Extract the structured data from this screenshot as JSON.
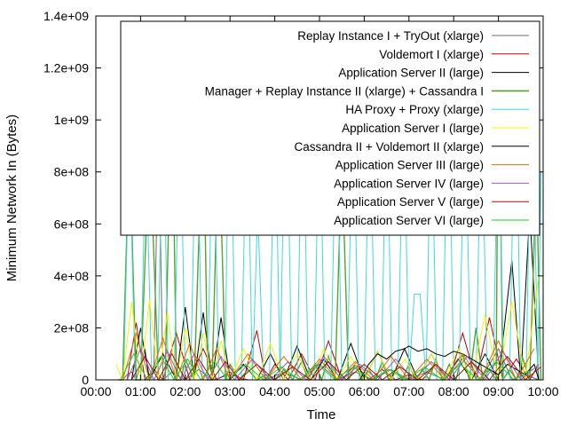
{
  "chart_data": {
    "type": "line",
    "xlabel": "Time",
    "ylabel": "Minimum Network In (Bytes)",
    "xlim": [
      0,
      10
    ],
    "ylim": [
      0,
      1400000000
    ],
    "x_ticks": [
      0,
      1,
      2,
      3,
      4,
      5,
      6,
      7,
      8,
      9,
      10
    ],
    "x_tick_labels": [
      "00:00",
      "01:00",
      "02:00",
      "03:00",
      "04:00",
      "05:00",
      "06:00",
      "07:00",
      "08:00",
      "09:00",
      "10:00"
    ],
    "y_ticks": [
      0,
      200000000,
      400000000,
      600000000,
      800000000,
      1000000000,
      1200000000,
      1400000000
    ],
    "y_tick_labels": [
      "0",
      "2e+08",
      "4e+08",
      "6e+08",
      "8e+08",
      "1e+09",
      "1.2e+09",
      "1.4e+09"
    ],
    "grid": false,
    "legend_position": "top-right",
    "series": [
      {
        "name": "Replay Instance I + TryOut (xlarge)",
        "color": "#6b6b6b",
        "x": [
          0.4,
          0.6,
          0.7,
          0.8,
          0.9,
          1.0,
          1.1,
          1.2,
          1.3,
          1.4,
          1.5,
          1.7,
          2.0,
          2.3,
          2.6,
          3.0,
          3.4,
          3.8,
          4.2,
          4.6,
          5.0,
          5.4,
          5.8,
          6.2,
          6.6,
          7.0,
          7.4,
          7.8,
          8.2,
          8.6,
          9.0,
          9.3,
          9.6,
          9.9
        ],
        "y": [
          0,
          0,
          20000000,
          30000000,
          0,
          60000000,
          120000000,
          0,
          60000000,
          980000000,
          0,
          30000000,
          0,
          40000000,
          0,
          20000000,
          0,
          0,
          30000000,
          0,
          60000000,
          0,
          30000000,
          0,
          40000000,
          0,
          30000000,
          0,
          80000000,
          0,
          120000000,
          0,
          20000000,
          0
        ]
      },
      {
        "name": "Voldemort I (xlarge)",
        "color": "#c00000",
        "x": [
          0.4,
          0.7,
          0.9,
          1.1,
          1.3,
          1.5,
          1.8,
          2.1,
          2.4,
          2.7,
          3.0,
          3.3,
          3.6,
          3.8,
          4.0,
          4.3,
          4.6,
          4.9,
          5.2,
          5.5,
          5.8,
          6.1,
          6.4,
          6.7,
          7.0,
          7.3,
          7.6,
          7.9,
          8.2,
          8.5,
          8.8,
          9.1,
          9.4,
          9.7,
          9.9
        ],
        "y": [
          0,
          0,
          220000000,
          0,
          40000000,
          0,
          180000000,
          0,
          120000000,
          0,
          30000000,
          0,
          190000000,
          0,
          60000000,
          0,
          100000000,
          0,
          150000000,
          0,
          60000000,
          0,
          40000000,
          0,
          20000000,
          0,
          60000000,
          0,
          180000000,
          0,
          240000000,
          0,
          80000000,
          0,
          60000000
        ]
      },
      {
        "name": "Application Server II (large)",
        "color": "#000000",
        "x": [
          0.5,
          0.8,
          1.0,
          1.2,
          1.5,
          1.8,
          2.0,
          2.2,
          2.4,
          2.6,
          2.8,
          3.0,
          3.3,
          3.6,
          3.9,
          4.2,
          4.5,
          4.8,
          5.1,
          5.4,
          5.7,
          6.0,
          6.3,
          6.6,
          6.9,
          7.2,
          7.5,
          7.8,
          8.1,
          8.4,
          8.7,
          9.0,
          9.3,
          9.5,
          9.7,
          9.9
        ],
        "y": [
          0,
          0,
          200000000,
          0,
          100000000,
          0,
          280000000,
          0,
          260000000,
          0,
          240000000,
          0,
          60000000,
          0,
          100000000,
          0,
          130000000,
          0,
          80000000,
          0,
          140000000,
          0,
          110000000,
          0,
          120000000,
          0,
          100000000,
          0,
          80000000,
          0,
          100000000,
          0,
          460000000,
          0,
          650000000,
          0
        ]
      },
      {
        "name": "Manager + Replay Instance II (xlarge) + Cassandra I",
        "color": "#5aa02c",
        "x": [
          0.5,
          0.6,
          0.75,
          0.9,
          1.0,
          1.2,
          1.4,
          1.55,
          1.7,
          1.8,
          1.9,
          2.0,
          2.2,
          2.4,
          2.5,
          2.6,
          2.75,
          2.9,
          3.0,
          3.2,
          3.4,
          3.6,
          3.8,
          4.0,
          4.2,
          4.4,
          4.6,
          4.75,
          4.9,
          5.05,
          5.2,
          5.35,
          5.5,
          5.65,
          5.8,
          5.95,
          6.1,
          6.25,
          6.4,
          6.55,
          6.7,
          6.85,
          7.0,
          7.15,
          7.3,
          7.45,
          7.6,
          7.75,
          7.9,
          8.05,
          8.2,
          8.35,
          8.5,
          8.65,
          8.8,
          8.95,
          9.0,
          9.1,
          9.25,
          9.4,
          9.55,
          9.7,
          9.85,
          9.95
        ],
        "y": [
          0,
          0,
          920000000,
          0,
          0,
          920000000,
          0,
          0,
          1200000000,
          0,
          0,
          80000000,
          0,
          1060000000,
          0,
          0,
          980000000,
          0,
          60000000,
          0,
          40000000,
          0,
          20000000,
          0,
          40000000,
          0,
          70000000,
          0,
          60000000,
          0,
          90000000,
          0,
          850000000,
          0,
          60000000,
          0,
          40000000,
          0,
          70000000,
          0,
          40000000,
          0,
          60000000,
          0,
          40000000,
          0,
          80000000,
          0,
          60000000,
          0,
          100000000,
          0,
          200000000,
          0,
          40000000,
          0,
          1330000000,
          0,
          40000000,
          0,
          80000000,
          0,
          790000000,
          0
        ]
      },
      {
        "name": "HA Proxy + Proxy (xlarge)",
        "color": "#3fd9d9",
        "x": [
          0.5,
          0.62,
          0.75,
          0.88,
          1.0,
          1.12,
          1.25,
          1.38,
          1.5,
          1.62,
          1.75,
          1.88,
          2.0,
          2.12,
          2.25,
          2.38,
          2.5,
          2.62,
          2.75,
          2.88,
          3.0,
          3.12,
          3.25,
          3.38,
          3.5,
          3.62,
          3.75,
          3.88,
          4.0,
          4.12,
          4.25,
          4.38,
          4.5,
          4.62,
          4.75,
          4.88,
          5.0,
          5.12,
          5.25,
          5.38,
          5.5,
          5.62,
          5.75,
          5.88,
          6.0,
          6.12,
          6.25,
          6.38,
          6.5,
          6.62,
          6.75,
          6.88,
          7.0,
          7.12,
          7.25,
          7.38,
          7.5,
          7.62,
          7.75,
          7.88,
          8.0,
          8.12,
          8.25,
          8.38,
          8.5,
          8.62,
          8.75,
          8.88,
          9.0,
          9.12,
          9.25,
          9.38,
          9.5,
          9.62,
          9.75,
          9.88,
          9.95
        ],
        "y": [
          0,
          0,
          900000000,
          0,
          0,
          900000000,
          0,
          0,
          1100000000,
          0,
          0,
          1100000000,
          0,
          0,
          1100000000,
          0,
          0,
          1100000000,
          0,
          0,
          1270000000,
          0,
          0,
          1100000000,
          0,
          660000000,
          0,
          0,
          1100000000,
          0,
          1270000000,
          0,
          0,
          1170000000,
          0,
          0,
          1110000000,
          0,
          0,
          1100000000,
          0,
          0,
          1100000000,
          0,
          0,
          1110000000,
          0,
          0,
          1100000000,
          0,
          0,
          1100000000,
          0,
          330000000,
          330000000,
          0,
          1110000000,
          0,
          0,
          1220000000,
          0,
          0,
          1100000000,
          0,
          0,
          1100000000,
          0,
          0,
          1110000000,
          0,
          0,
          1270000000,
          0,
          0,
          1280000000,
          0,
          800000000
        ]
      },
      {
        "name": "Application Server I (large)",
        "color": "#f5f500",
        "x": [
          0.45,
          0.6,
          0.8,
          1.0,
          1.2,
          1.4,
          1.6,
          1.8,
          2.0,
          2.2,
          2.4,
          2.6,
          2.8,
          3.0,
          3.3,
          3.6,
          3.9,
          4.2,
          4.5,
          4.8,
          5.1,
          5.4,
          5.7,
          6.0,
          6.3,
          6.6,
          6.9,
          7.2,
          7.5,
          7.8,
          8.1,
          8.4,
          8.7,
          9.0,
          9.3,
          9.6,
          9.9
        ],
        "y": [
          60000000,
          0,
          300000000,
          0,
          310000000,
          0,
          260000000,
          0,
          200000000,
          0,
          180000000,
          0,
          150000000,
          0,
          120000000,
          0,
          140000000,
          0,
          100000000,
          0,
          120000000,
          0,
          90000000,
          0,
          110000000,
          0,
          80000000,
          0,
          100000000,
          0,
          120000000,
          0,
          250000000,
          0,
          300000000,
          0,
          400000000
        ]
      },
      {
        "name": "Cassandra II + Voldemort II (xlarge)",
        "color": "#000000",
        "x": [
          5.9,
          6.1,
          6.3,
          6.5,
          6.7,
          6.9,
          7.0,
          7.2,
          7.4,
          7.6,
          7.8,
          8.0,
          8.2,
          8.4,
          8.6,
          8.8,
          9.0,
          9.2,
          9.4,
          9.6,
          9.8,
          9.9
        ],
        "y": [
          0,
          60000000,
          100000000,
          80000000,
          110000000,
          120000000,
          130000000,
          110000000,
          120000000,
          100000000,
          90000000,
          110000000,
          100000000,
          80000000,
          60000000,
          40000000,
          20000000,
          60000000,
          40000000,
          20000000,
          60000000,
          0
        ]
      },
      {
        "name": "Application Server III (large)",
        "color": "#e06c00",
        "x": [
          0.6,
          0.9,
          1.2,
          1.5,
          1.8,
          2.1,
          2.4,
          2.7,
          3.0,
          3.4,
          3.8,
          4.2,
          4.6,
          5.0,
          5.4,
          5.8,
          6.2,
          6.6,
          7.0,
          7.4,
          7.8,
          8.2,
          8.6,
          9.0,
          9.4,
          9.8
        ],
        "y": [
          0,
          180000000,
          0,
          160000000,
          0,
          140000000,
          0,
          120000000,
          0,
          100000000,
          0,
          90000000,
          0,
          80000000,
          0,
          70000000,
          0,
          90000000,
          0,
          80000000,
          0,
          100000000,
          0,
          150000000,
          0,
          120000000
        ]
      },
      {
        "name": "Application Server IV (large)",
        "color": "#9b59b6",
        "x": [
          0.7,
          1.0,
          1.3,
          1.6,
          1.9,
          2.2,
          2.5,
          2.8,
          3.1,
          3.5,
          3.9,
          4.3,
          4.7,
          5.1,
          5.5,
          5.9,
          6.3,
          6.7,
          7.1,
          7.5,
          7.9,
          8.3,
          8.7,
          9.1,
          9.5,
          9.9
        ],
        "y": [
          0,
          120000000,
          0,
          110000000,
          0,
          100000000,
          0,
          90000000,
          0,
          80000000,
          0,
          70000000,
          0,
          90000000,
          0,
          60000000,
          0,
          80000000,
          0,
          70000000,
          0,
          90000000,
          0,
          110000000,
          0,
          60000000
        ]
      },
      {
        "name": "Application Server V (large)",
        "color": "#a01010",
        "x": [
          0.8,
          1.1,
          1.4,
          1.7,
          2.0,
          2.3,
          2.6,
          2.9,
          3.2,
          3.6,
          4.0,
          4.4,
          4.8,
          5.2,
          5.6,
          6.0,
          6.4,
          6.8,
          7.2,
          7.6,
          8.0,
          8.4,
          8.8,
          9.2,
          9.6,
          9.95
        ],
        "y": [
          0,
          90000000,
          0,
          100000000,
          0,
          80000000,
          0,
          70000000,
          0,
          60000000,
          0,
          50000000,
          0,
          70000000,
          0,
          60000000,
          0,
          50000000,
          0,
          60000000,
          0,
          70000000,
          0,
          90000000,
          0,
          50000000
        ]
      },
      {
        "name": "Application Server VI (large)",
        "color": "#22cc22",
        "x": [
          0.55,
          0.85,
          1.15,
          1.45,
          1.75,
          2.05,
          2.35,
          2.65,
          2.95,
          3.35,
          3.75,
          4.15,
          4.55,
          4.95,
          5.35,
          5.75,
          6.15,
          6.55,
          6.95,
          7.35,
          7.75,
          8.15,
          8.55,
          8.95,
          9.35,
          9.75
        ],
        "y": [
          0,
          100000000,
          0,
          90000000,
          0,
          80000000,
          0,
          70000000,
          0,
          60000000,
          0,
          50000000,
          0,
          60000000,
          0,
          50000000,
          0,
          40000000,
          0,
          50000000,
          0,
          60000000,
          0,
          70000000,
          0,
          40000000
        ]
      }
    ]
  }
}
